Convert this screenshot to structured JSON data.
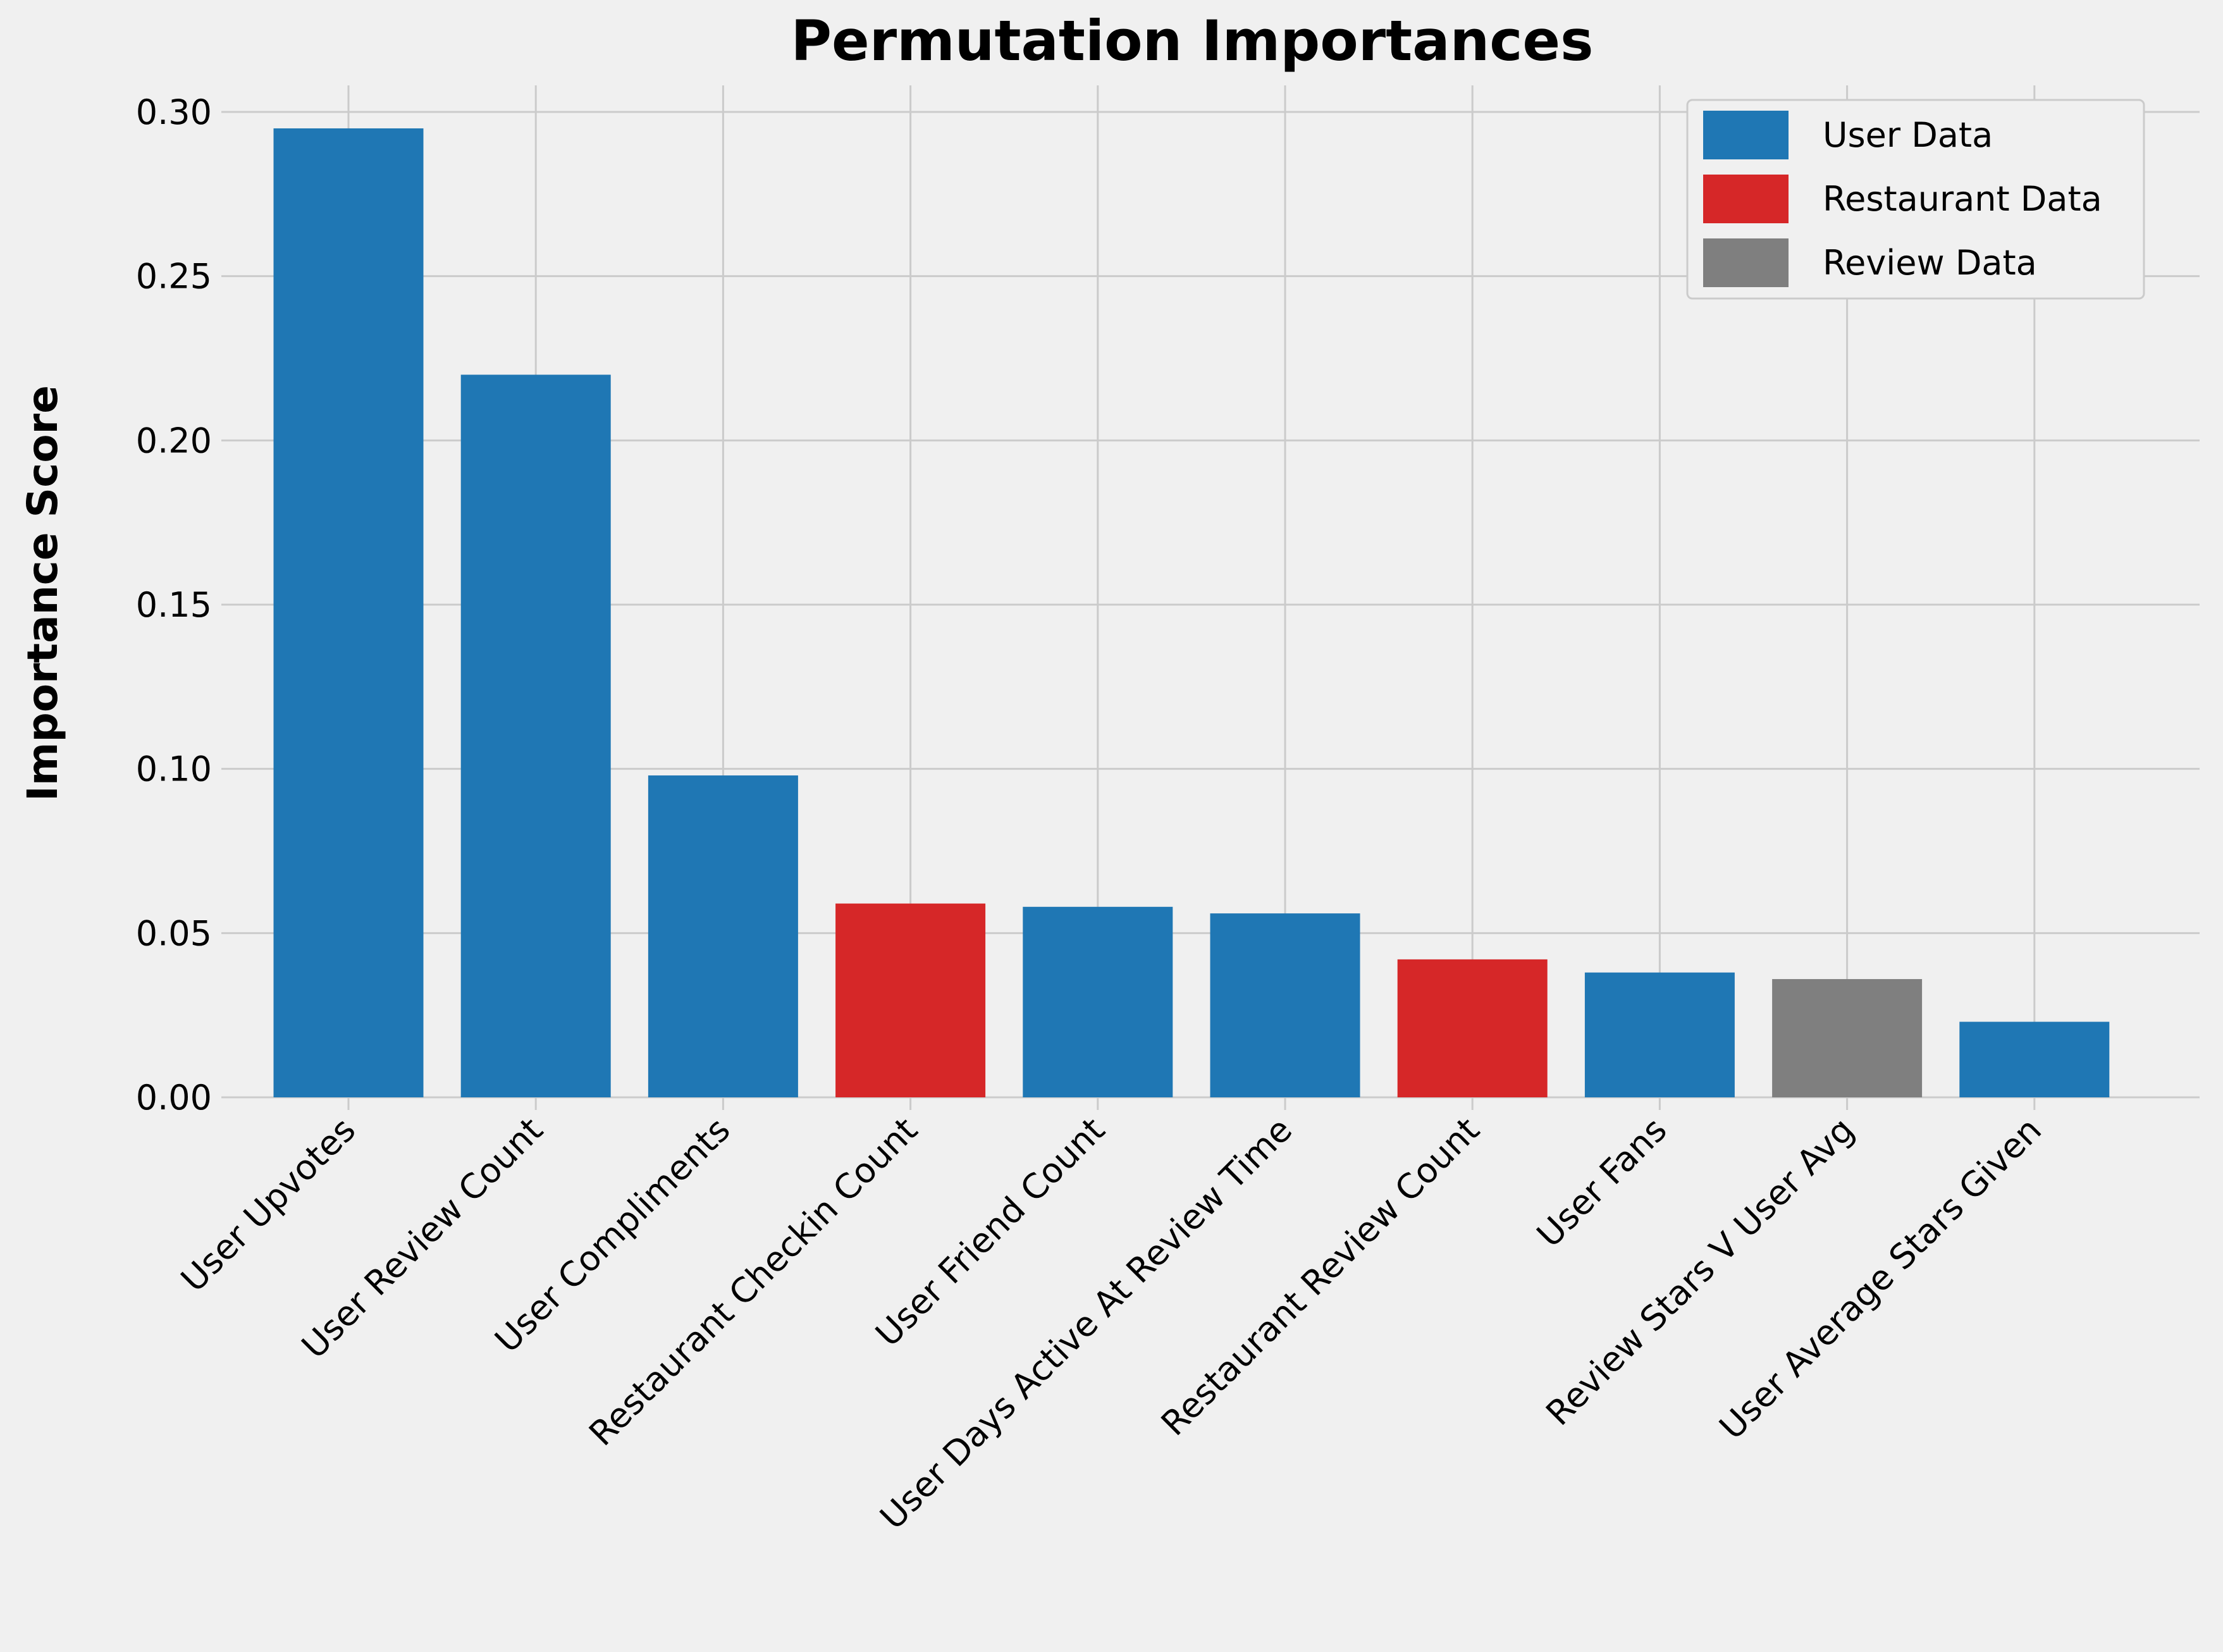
{
  "chart_data": {
    "type": "bar",
    "title": "Permutation Importances",
    "xlabel": "",
    "ylabel": "Importance Score",
    "ylim": [
      0,
      0.31
    ],
    "yticks": [
      0.0,
      0.05,
      0.1,
      0.15,
      0.2,
      0.25,
      0.3
    ],
    "ytick_labels": [
      "0.00",
      "0.05",
      "0.10",
      "0.15",
      "0.20",
      "0.25",
      "0.30"
    ],
    "grid": true,
    "legend_position": "top-right",
    "categories": [
      "User Upvotes",
      "User Review Count",
      "User Compliments",
      "Restaurant Checkin Count",
      "User Friend Count",
      "User Days Active At Review Time",
      "Restaurant Review Count",
      "User Fans",
      "Review Stars V User Avg",
      "User Average Stars Given"
    ],
    "values": [
      0.295,
      0.22,
      0.098,
      0.059,
      0.058,
      0.056,
      0.042,
      0.038,
      0.036,
      0.023
    ],
    "groups": [
      "User Data",
      "User Data",
      "User Data",
      "Restaurant Data",
      "User Data",
      "User Data",
      "Restaurant Data",
      "User Data",
      "Review Data",
      "User Data"
    ],
    "legend": [
      {
        "name": "User Data",
        "color": "#1f77b4"
      },
      {
        "name": "Restaurant Data",
        "color": "#d62728"
      },
      {
        "name": "Review Data",
        "color": "#7f7f7f"
      }
    ]
  }
}
